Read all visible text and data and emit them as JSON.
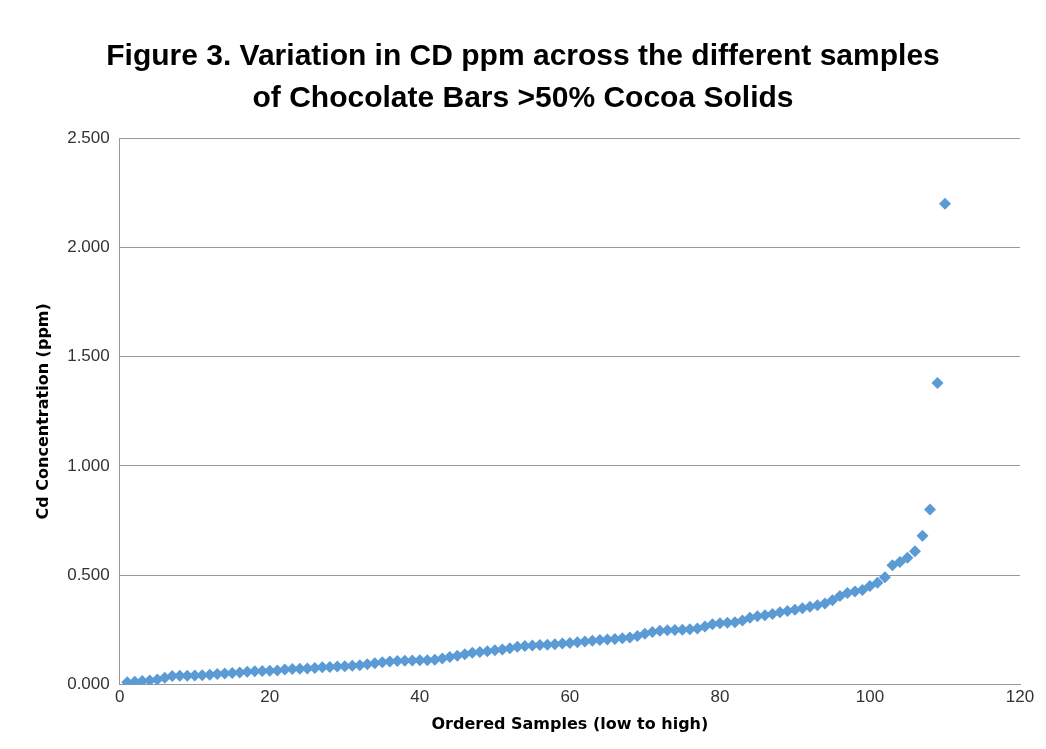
{
  "chart_data": {
    "type": "scatter",
    "title": "Figure 3. Variation in CD ppm across the different samples of Chocolate Bars >50% Cocoa Solids",
    "xlabel": "Ordered Samples (low to high)",
    "ylabel": "Cd Concentration (ppm)",
    "x": [
      1,
      2,
      3,
      4,
      5,
      6,
      7,
      8,
      9,
      10,
      11,
      12,
      13,
      14,
      15,
      16,
      17,
      18,
      19,
      20,
      21,
      22,
      23,
      24,
      25,
      26,
      27,
      28,
      29,
      30,
      31,
      32,
      33,
      34,
      35,
      36,
      37,
      38,
      39,
      40,
      41,
      42,
      43,
      44,
      45,
      46,
      47,
      48,
      49,
      50,
      51,
      52,
      53,
      54,
      55,
      56,
      57,
      58,
      59,
      60,
      61,
      62,
      63,
      64,
      65,
      66,
      67,
      68,
      69,
      70,
      71,
      72,
      73,
      74,
      75,
      76,
      77,
      78,
      79,
      80,
      81,
      82,
      83,
      84,
      85,
      86,
      87,
      88,
      89,
      90,
      91,
      92,
      93,
      94,
      95,
      96,
      97,
      98,
      99,
      100,
      101,
      102,
      103,
      104,
      105,
      106,
      107,
      108,
      109,
      110
    ],
    "series": [
      {
        "color": "#5b9bd5",
        "values": [
          0.01,
          0.012,
          0.015,
          0.018,
          0.022,
          0.03,
          0.038,
          0.04,
          0.04,
          0.041,
          0.042,
          0.044,
          0.048,
          0.05,
          0.052,
          0.054,
          0.058,
          0.06,
          0.061,
          0.062,
          0.064,
          0.068,
          0.07,
          0.072,
          0.073,
          0.075,
          0.078,
          0.08,
          0.082,
          0.083,
          0.085,
          0.088,
          0.092,
          0.097,
          0.101,
          0.105,
          0.107,
          0.108,
          0.109,
          0.11,
          0.111,
          0.113,
          0.118,
          0.125,
          0.131,
          0.138,
          0.145,
          0.148,
          0.152,
          0.156,
          0.16,
          0.165,
          0.172,
          0.176,
          0.178,
          0.18,
          0.182,
          0.184,
          0.187,
          0.19,
          0.193,
          0.196,
          0.2,
          0.203,
          0.206,
          0.208,
          0.211,
          0.215,
          0.222,
          0.232,
          0.24,
          0.246,
          0.248,
          0.249,
          0.25,
          0.252,
          0.256,
          0.265,
          0.275,
          0.28,
          0.282,
          0.285,
          0.292,
          0.305,
          0.312,
          0.316,
          0.322,
          0.33,
          0.336,
          0.342,
          0.348,
          0.355,
          0.362,
          0.37,
          0.385,
          0.405,
          0.418,
          0.425,
          0.432,
          0.45,
          0.465,
          0.49,
          0.545,
          0.56,
          0.58,
          0.61,
          0.68,
          0.8,
          1.38,
          2.2
        ]
      }
    ],
    "xlim": [
      0,
      120
    ],
    "xticks": [
      0,
      20,
      40,
      60,
      80,
      100,
      120
    ],
    "ylim": [
      0,
      2.5
    ],
    "yticks": [
      {
        "value": 0,
        "label": "0.000"
      },
      {
        "value": 0.5,
        "label": "0.500"
      },
      {
        "value": 1,
        "label": "1.000"
      },
      {
        "value": 1.5,
        "label": "1.500"
      },
      {
        "value": 2,
        "label": "2.000"
      },
      {
        "value": 2.5,
        "label": "2.500"
      }
    ],
    "grid": "y",
    "marker": "diamond",
    "legend": false
  }
}
